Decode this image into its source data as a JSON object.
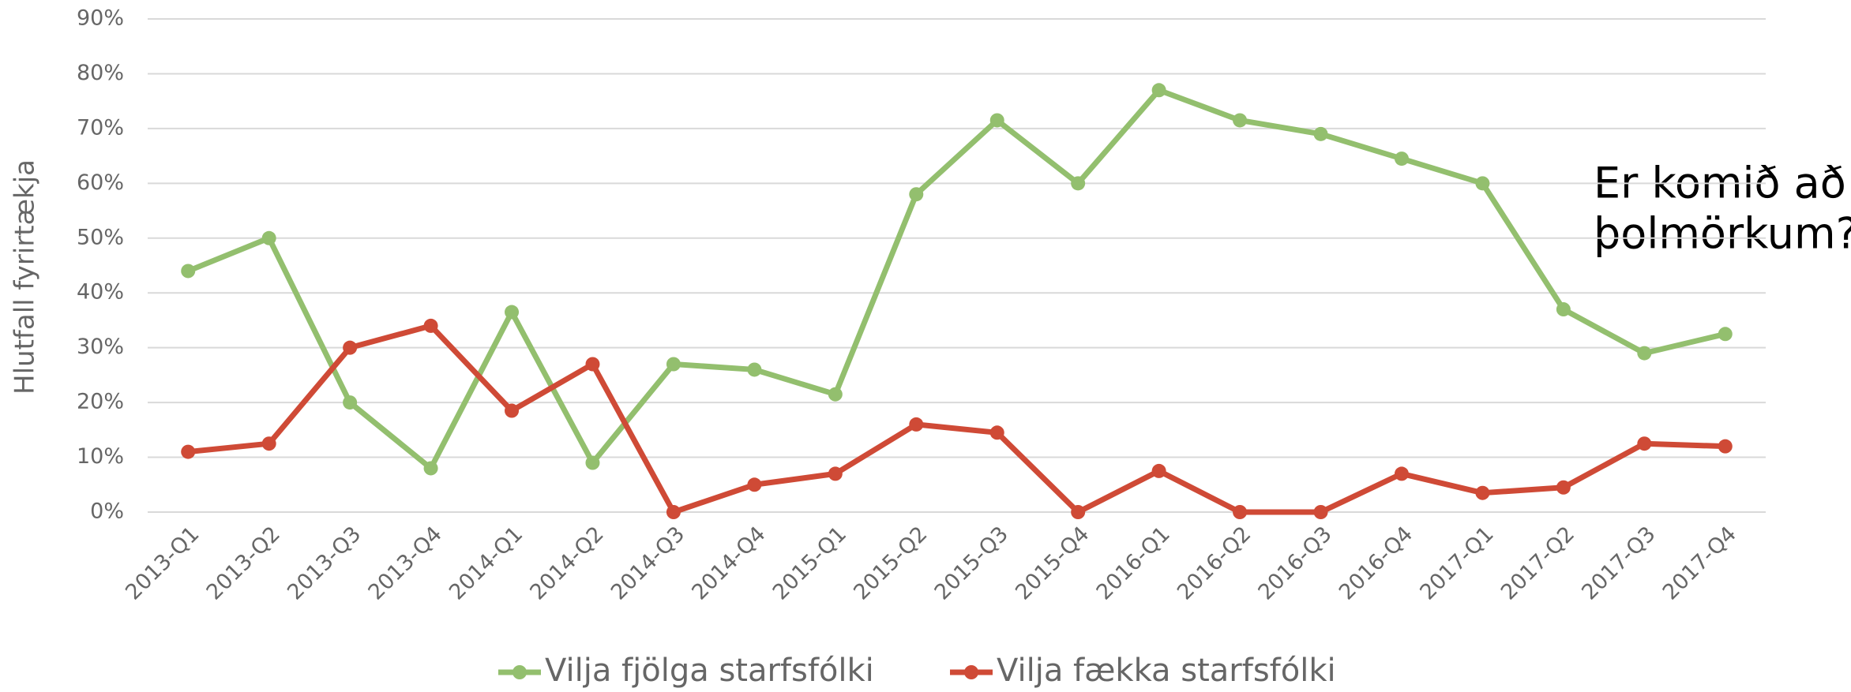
{
  "chart_data": {
    "type": "line",
    "ylabel": "Hlutfall fyrirtækja",
    "annotation": [
      "Er komið að",
      "þolmörkum?"
    ],
    "categories": [
      "2013-Q1",
      "2013-Q2",
      "2013-Q3",
      "2013-Q4",
      "2014-Q1",
      "2014-Q2",
      "2014-Q3",
      "2014-Q4",
      "2015-Q1",
      "2015-Q2",
      "2015-Q3",
      "2015-Q4",
      "2016-Q1",
      "2016-Q2",
      "2016-Q3",
      "2016-Q4",
      "2017-Q1",
      "2017-Q2",
      "2017-Q3",
      "2017-Q4"
    ],
    "series": [
      {
        "name": "Vilja fjölga starfsfólki",
        "color": "#93bf6e",
        "values": [
          44,
          50,
          20,
          8,
          36.5,
          9,
          27,
          26,
          21.5,
          58,
          71.5,
          60,
          77,
          71.5,
          69,
          64.5,
          60,
          37,
          29,
          32.5
        ]
      },
      {
        "name": "Vilja fækka starfsfólki",
        "color": "#cf4a36",
        "values": [
          11,
          12.5,
          30,
          34,
          18.5,
          27,
          0,
          5,
          7,
          16,
          14.5,
          0,
          7.5,
          0,
          0,
          7,
          3.5,
          4.5,
          12.5,
          12
        ]
      }
    ],
    "ylim": [
      0,
      90
    ],
    "yticks": [
      {
        "value": 0,
        "label": "0%"
      },
      {
        "value": 10,
        "label": "10%"
      },
      {
        "value": 20,
        "label": "20%"
      },
      {
        "value": 30,
        "label": "30%"
      },
      {
        "value": 40,
        "label": "40%"
      },
      {
        "value": 50,
        "label": "50%"
      },
      {
        "value": 60,
        "label": "60%"
      },
      {
        "value": 70,
        "label": "70%"
      },
      {
        "value": 80,
        "label": "80%"
      },
      {
        "value": 90,
        "label": "90%"
      }
    ],
    "grid": true,
    "legend": "bottom"
  }
}
